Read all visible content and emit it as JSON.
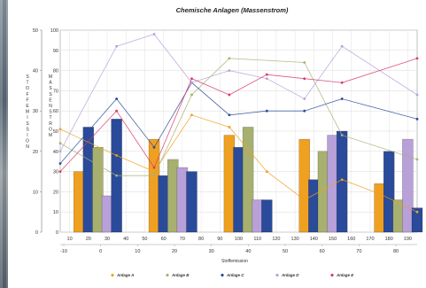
{
  "chart_data": {
    "type": "bar+line",
    "title": "Chemische Anlagen (Massenstrom)",
    "xlabel": "Stoffemission",
    "ylabel_left": "Stoffemission",
    "ylabel_inner": "Massenstrom",
    "primary_x_ticks": [
      "10",
      "20",
      "30",
      "40",
      "50",
      "60",
      "70",
      "80",
      "90",
      "100",
      "110",
      "120",
      "130",
      "140",
      "150",
      "160",
      "170",
      "180",
      "190"
    ],
    "secondary_x_ticks": [
      "-10",
      "0",
      "10",
      "20",
      "30",
      "40",
      "50",
      "60",
      "70",
      "80"
    ],
    "y_left_ticks": [
      "0",
      "10",
      "20",
      "30",
      "40",
      "50"
    ],
    "y_right_ticks": [
      "0",
      "10",
      "20",
      "30",
      "40",
      "50",
      "60",
      "70",
      "80",
      "90",
      "100"
    ],
    "y_left_lim": [
      0,
      50
    ],
    "y_right_lim": [
      0,
      100
    ],
    "grid": true,
    "legend_position": "bottom",
    "series": [
      {
        "name": "Anlage A",
        "color": "#f0a020"
      },
      {
        "name": "Anlage B",
        "color": "#a8b070"
      },
      {
        "name": "Anlage C",
        "color": "#2a4a9a"
      },
      {
        "name": "Anlage D",
        "color": "#b8a0d8"
      },
      {
        "name": "Anlage E",
        "color": "#d83a6a"
      }
    ],
    "bars": [
      {
        "x": 20,
        "series": "Anlage A",
        "value": 15
      },
      {
        "x": 25,
        "series": "Anlage C",
        "value": 26
      },
      {
        "x": 30,
        "series": "Anlage B",
        "value": 21
      },
      {
        "x": 35,
        "series": "Anlage D",
        "value": 9
      },
      {
        "x": 40,
        "series": "Anlage C",
        "value": 28
      },
      {
        "x": 60,
        "series": "Anlage A",
        "value": 23
      },
      {
        "x": 65,
        "series": "Anlage C",
        "value": 14
      },
      {
        "x": 70,
        "series": "Anlage B",
        "value": 18
      },
      {
        "x": 75,
        "series": "Anlage D",
        "value": 16
      },
      {
        "x": 80,
        "series": "Anlage C",
        "value": 15
      },
      {
        "x": 100,
        "series": "Anlage A",
        "value": 24
      },
      {
        "x": 105,
        "series": "Anlage C",
        "value": 21
      },
      {
        "x": 110,
        "series": "Anlage B",
        "value": 26
      },
      {
        "x": 115,
        "series": "Anlage D",
        "value": 8
      },
      {
        "x": 120,
        "series": "Anlage C",
        "value": 8
      },
      {
        "x": 140,
        "series": "Anlage A",
        "value": 23
      },
      {
        "x": 145,
        "series": "Anlage C",
        "value": 13
      },
      {
        "x": 150,
        "series": "Anlage B",
        "value": 20
      },
      {
        "x": 155,
        "series": "Anlage D",
        "value": 24
      },
      {
        "x": 160,
        "series": "Anlage C",
        "value": 25
      },
      {
        "x": 180,
        "series": "Anlage A",
        "value": 12
      },
      {
        "x": 185,
        "series": "Anlage C",
        "value": 20
      },
      {
        "x": 190,
        "series": "Anlage B",
        "value": 8
      },
      {
        "x": 195,
        "series": "Anlage D",
        "value": 23
      },
      {
        "x": 200,
        "series": "Anlage C",
        "value": 6
      }
    ],
    "lines": [
      {
        "series": "Anlage A",
        "values": [
          [
            10,
            51
          ],
          [
            40,
            38
          ],
          [
            60,
            30
          ],
          [
            80,
            58
          ],
          [
            100,
            52
          ],
          [
            120,
            30
          ],
          [
            140,
            16
          ],
          [
            160,
            26
          ],
          [
            180,
            19
          ],
          [
            200,
            10
          ]
        ]
      },
      {
        "series": "Anlage B",
        "values": [
          [
            10,
            44
          ],
          [
            40,
            28
          ],
          [
            60,
            28
          ],
          [
            80,
            68
          ],
          [
            100,
            86
          ],
          [
            140,
            84
          ],
          [
            160,
            48
          ],
          [
            200,
            36
          ]
        ]
      },
      {
        "series": "Anlage C",
        "values": [
          [
            10,
            34
          ],
          [
            40,
            66
          ],
          [
            60,
            42
          ],
          [
            80,
            74
          ],
          [
            100,
            58
          ],
          [
            120,
            60
          ],
          [
            140,
            60
          ],
          [
            160,
            66
          ],
          [
            200,
            56
          ]
        ]
      },
      {
        "series": "Anlage D",
        "values": [
          [
            10,
            40
          ],
          [
            40,
            92
          ],
          [
            60,
            98
          ],
          [
            80,
            74
          ],
          [
            100,
            80
          ],
          [
            120,
            76
          ],
          [
            140,
            66
          ],
          [
            160,
            92
          ],
          [
            200,
            68
          ]
        ]
      },
      {
        "series": "Anlage E",
        "values": [
          [
            10,
            30
          ],
          [
            40,
            60
          ],
          [
            60,
            32
          ],
          [
            80,
            76
          ],
          [
            100,
            68
          ],
          [
            120,
            78
          ],
          [
            140,
            76
          ],
          [
            160,
            74
          ],
          [
            200,
            86
          ]
        ]
      }
    ]
  }
}
